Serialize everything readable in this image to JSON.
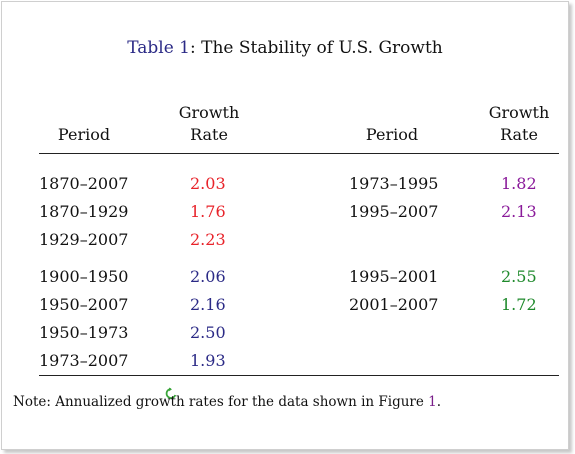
{
  "title": {
    "prefix": "Table 1",
    "rest": ": The Stability of U.S. Growth"
  },
  "headers": {
    "left_period": "Period",
    "left_growth_line1": "Growth",
    "left_growth_line2": "Rate",
    "right_period": "Period",
    "right_growth_line1": "Growth",
    "right_growth_line2": "Rate"
  },
  "left_rows": [
    {
      "period": "1870–2007",
      "rate": "2.03",
      "color": "#e8232a"
    },
    {
      "period": "1870–1929",
      "rate": "1.76",
      "color": "#e8232a"
    },
    {
      "period": "1929–2007",
      "rate": "2.23",
      "color": "#e8232a"
    },
    {
      "period": "1900–1950",
      "rate": "2.06",
      "color": "#2b2a86"
    },
    {
      "period": "1950–2007",
      "rate": "2.16",
      "color": "#2b2a86"
    },
    {
      "period": "1950–1973",
      "rate": "2.50",
      "color": "#2b2a86"
    },
    {
      "period": "1973–2007",
      "rate": "1.93",
      "color": "#2b2a86"
    }
  ],
  "right_rows": [
    {
      "period": "1973–1995",
      "rate": "1.82",
      "color": "#8a1a9a"
    },
    {
      "period": "1995–2007",
      "rate": "2.13",
      "color": "#8a1a9a"
    },
    {
      "period": "1995–2001",
      "rate": "2.55",
      "color": "#1f8a2c"
    },
    {
      "period": "2001–2007",
      "rate": "1.72",
      "color": "#1f8a2c"
    }
  ],
  "note": {
    "text": "Note: Annualized growth rates for the data shown in Figure ",
    "figure_ref": "1",
    "end": "."
  }
}
